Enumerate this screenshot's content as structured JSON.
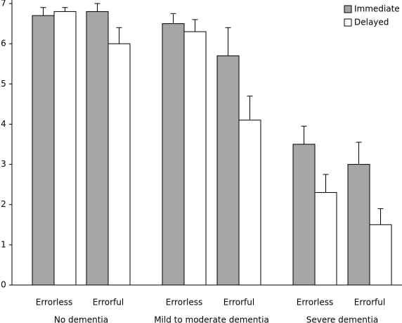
{
  "chart_data": {
    "type": "bar",
    "categories": [
      "Errorless",
      "Errorful",
      "Errorless",
      "Errorful",
      "Errorless",
      "Errorful"
    ],
    "groups": [
      "No dementia",
      "Mild to moderate dementia",
      "Severe dementia"
    ],
    "series": [
      {
        "name": "Immediate",
        "color": "#a6a6a6",
        "values": [
          6.7,
          6.8,
          6.5,
          5.7,
          3.5,
          3.0
        ],
        "errors": [
          0.2,
          0.2,
          0.25,
          0.7,
          0.45,
          0.55
        ]
      },
      {
        "name": "Delayed",
        "color": "#ffffff",
        "values": [
          6.8,
          6.0,
          6.3,
          4.1,
          2.3,
          1.5
        ],
        "errors": [
          0.1,
          0.4,
          0.3,
          0.6,
          0.45,
          0.4
        ]
      }
    ],
    "ylim": [
      0,
      7
    ],
    "yticks": [
      0,
      1,
      2,
      3,
      4,
      5,
      6,
      7
    ],
    "legend": "upper right"
  }
}
